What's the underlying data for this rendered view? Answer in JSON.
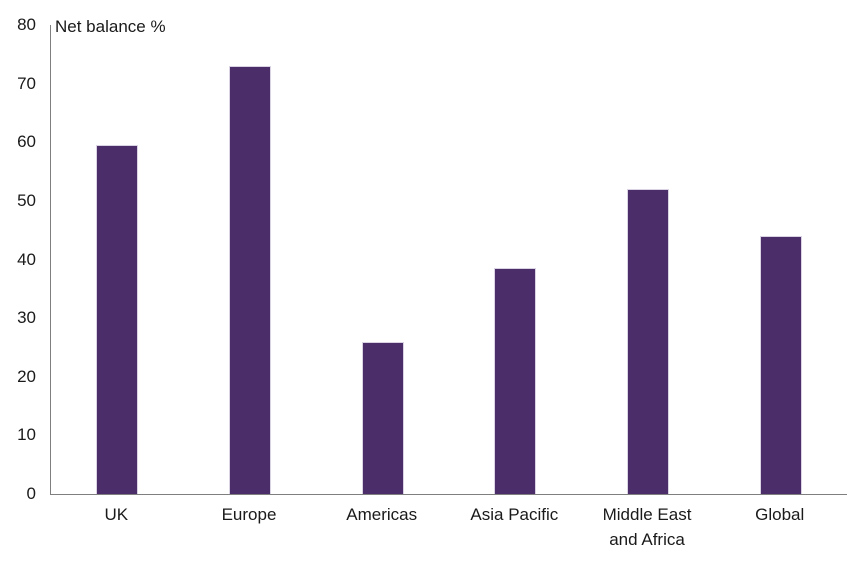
{
  "chart_data": {
    "type": "bar",
    "title": "Net balance %",
    "ylabel": "Net balance %",
    "xlabel": "",
    "categories": [
      "UK",
      "Europe",
      "Americas",
      "Asia Pacific",
      "Middle East\nand Africa",
      "Global"
    ],
    "values": [
      59.5,
      73,
      26,
      38.5,
      52,
      44
    ],
    "ylim": [
      0,
      80
    ],
    "yticks": [
      0,
      10,
      20,
      30,
      40,
      50,
      60,
      70,
      80
    ],
    "grid": false,
    "legend": false,
    "colors": {
      "bar_fill": "#4a2d69",
      "bar_edge": "#d9d3e3",
      "axis_line": "#7f7f7f",
      "text": "#1a1a1a"
    }
  }
}
